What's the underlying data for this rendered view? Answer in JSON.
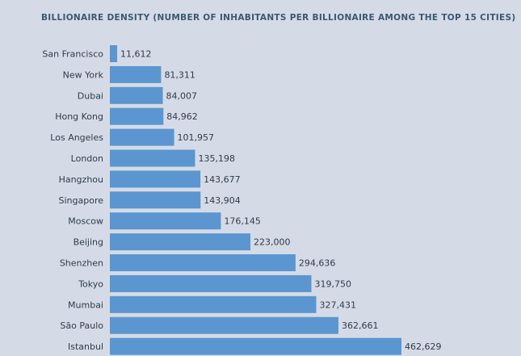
{
  "chart_data": {
    "type": "bar",
    "orientation": "horizontal",
    "title": "BILLIONAIRE DENSITY (NUMBER OF INHABITANTS PER BILLIONAIRE AMONG THE TOP 15 CITIES)",
    "categories": [
      "San Francisco",
      "New York",
      "Dubai",
      "Hong Kong",
      "Los Angeles",
      "London",
      "Hangzhou",
      "Singapore",
      "Moscow",
      "Beijing",
      "Shenzhen",
      "Tokyo",
      "Mumbai",
      "São Paulo",
      "Istanbul"
    ],
    "values": [
      11612,
      81311,
      84007,
      84962,
      101957,
      135198,
      143677,
      143904,
      176145,
      223000,
      294636,
      319750,
      327431,
      362661,
      462629
    ],
    "value_labels": [
      "11,612",
      "81,311",
      "84,007",
      "84,962",
      "101,957",
      "135,198",
      "143,677",
      "143,904",
      "176,145",
      "223,000",
      "294,636",
      "319,750",
      "327,431",
      "362,661",
      "462,629"
    ],
    "xlim": [
      0,
      462629
    ],
    "grid": false,
    "bar_color": "#5b96d0"
  }
}
